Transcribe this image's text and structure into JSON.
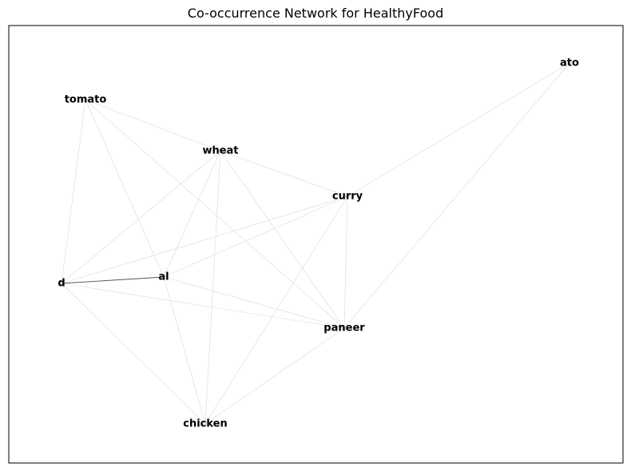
{
  "title": "Co-occurrence Network for HealthyFood",
  "colors": {
    "edge_light": "#d9d9d9",
    "edge_strong": "#555555",
    "node": "#cfe3f5",
    "frame": "#000000"
  },
  "nodes": [
    {
      "id": "tomato",
      "label": "tomato"
    },
    {
      "id": "wheat",
      "label": "wheat"
    },
    {
      "id": "curry",
      "label": "curry"
    },
    {
      "id": "ato",
      "label": "ato"
    },
    {
      "id": "d",
      "label": "d"
    },
    {
      "id": "al",
      "label": "al"
    },
    {
      "id": "paneer",
      "label": "paneer"
    },
    {
      "id": "chicken",
      "label": "chicken"
    }
  ],
  "edges": [
    {
      "source": "d",
      "target": "al",
      "strength": "strong"
    },
    {
      "source": "tomato",
      "target": "wheat",
      "strength": "light"
    },
    {
      "source": "tomato",
      "target": "d",
      "strength": "light"
    },
    {
      "source": "tomato",
      "target": "al",
      "strength": "light"
    },
    {
      "source": "tomato",
      "target": "paneer",
      "strength": "light"
    },
    {
      "source": "wheat",
      "target": "curry",
      "strength": "light"
    },
    {
      "source": "wheat",
      "target": "d",
      "strength": "light"
    },
    {
      "source": "wheat",
      "target": "al",
      "strength": "light"
    },
    {
      "source": "wheat",
      "target": "paneer",
      "strength": "light"
    },
    {
      "source": "wheat",
      "target": "chicken",
      "strength": "light"
    },
    {
      "source": "curry",
      "target": "ato",
      "strength": "light"
    },
    {
      "source": "curry",
      "target": "d",
      "strength": "light"
    },
    {
      "source": "curry",
      "target": "al",
      "strength": "light"
    },
    {
      "source": "curry",
      "target": "paneer",
      "strength": "light"
    },
    {
      "source": "curry",
      "target": "chicken",
      "strength": "light"
    },
    {
      "source": "ato",
      "target": "paneer",
      "strength": "light"
    },
    {
      "source": "d",
      "target": "paneer",
      "strength": "light"
    },
    {
      "source": "d",
      "target": "chicken",
      "strength": "light"
    },
    {
      "source": "al",
      "target": "paneer",
      "strength": "light"
    },
    {
      "source": "al",
      "target": "chicken",
      "strength": "light"
    },
    {
      "source": "paneer",
      "target": "chicken",
      "strength": "light"
    }
  ]
}
